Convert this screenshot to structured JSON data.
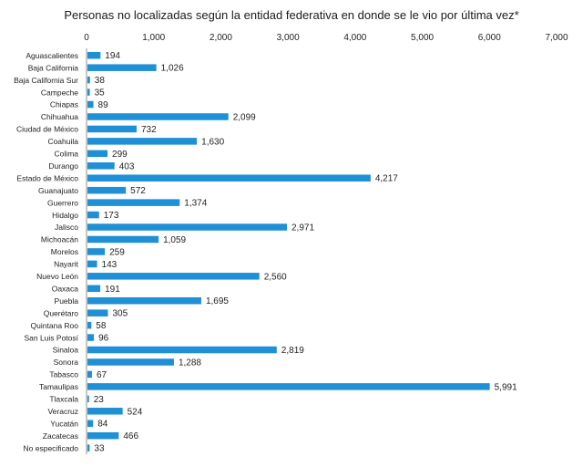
{
  "chart_data": {
    "type": "bar",
    "orientation": "horizontal",
    "title": "Personas no localizadas según la entidad federativa en donde se le vio por última vez*",
    "xlabel": "",
    "ylabel": "",
    "xlim": [
      0,
      7000
    ],
    "x_ticks": [
      "0",
      "1,000",
      "2,000",
      "3,000",
      "4,000",
      "5,000",
      "6,000",
      "7,000"
    ],
    "x_tick_values": [
      0,
      1000,
      2000,
      3000,
      4000,
      5000,
      6000,
      7000
    ],
    "x_axis_position": "top",
    "grid": false,
    "legend": false,
    "bar_color": "#1f8fd6",
    "categories": [
      "Aguascalientes",
      "Baja California",
      "Baja California Sur",
      "Campeche",
      "Chiapas",
      "Chihuahua",
      "Ciudad de México",
      "Coahuila",
      "Colima",
      "Durango",
      "Estado de México",
      "Guanajuato",
      "Guerrero",
      "Hidalgo",
      "Jalisco",
      "Michoacán",
      "Morelos",
      "Nayarit",
      "Nuevo León",
      "Oaxaca",
      "Puebla",
      "Querétaro",
      "Quintana Roo",
      "San Luis Potosí",
      "Sinaloa",
      "Sonora",
      "Tabasco",
      "Tamaulipas",
      "Tlaxcala",
      "Veracruz",
      "Yucatán",
      "Zacatecas",
      "No especificado"
    ],
    "values": [
      194,
      1026,
      38,
      35,
      89,
      2099,
      732,
      1630,
      299,
      403,
      4217,
      572,
      1374,
      173,
      2971,
      1059,
      259,
      143,
      2560,
      191,
      1695,
      305,
      58,
      96,
      2819,
      1288,
      67,
      5991,
      23,
      524,
      84,
      466,
      33
    ],
    "value_labels": [
      "194",
      "1,026",
      "38",
      "35",
      "89",
      "2,099",
      "732",
      "1,630",
      "299",
      "403",
      "4,217",
      "572",
      "1,374",
      "173",
      "2,971",
      "1,059",
      "259",
      "143",
      "2,560",
      "191",
      "1,695",
      "305",
      "58",
      "96",
      "2,819",
      "1,288",
      "67",
      "5,991",
      "23",
      "524",
      "84",
      "466",
      "33"
    ]
  }
}
